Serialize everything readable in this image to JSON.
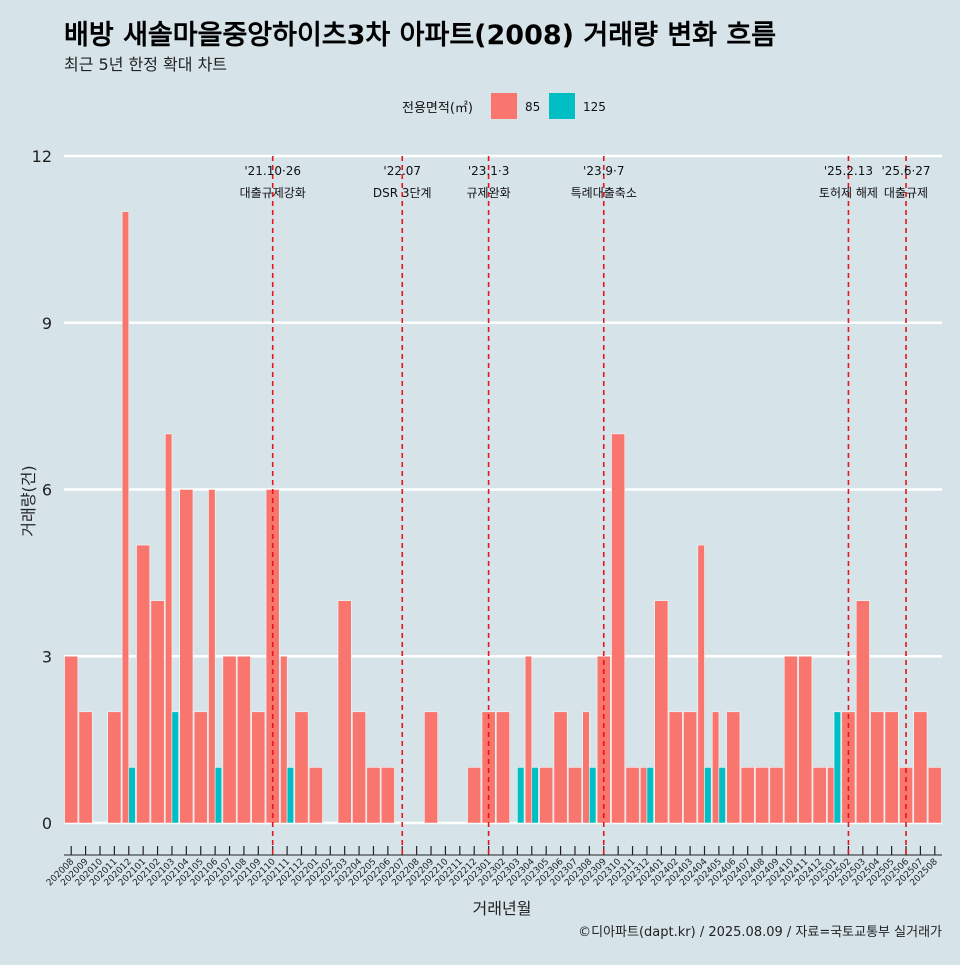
{
  "title": "배방 새솔마을중앙하이츠3차 아파트(2008) 거래량 변화 흐름",
  "subtitle": "최근 5년 한정 확대 차트",
  "caption": "©디아파트(dapt.kr) / 2025.08.09 / 자료=국토교통부 실거래가",
  "colors": {
    "background": "#d6e4ea",
    "s85": "#f8766d",
    "s125": "#00bfc4",
    "event_line": "#e8141b",
    "grid": "#ffffff"
  },
  "chart_data": {
    "type": "bar",
    "xlabel": "거래년월",
    "ylabel": "거래량(건)",
    "ylim": [
      0,
      12
    ],
    "yticks": [
      0,
      3,
      6,
      9,
      12
    ],
    "grid": true,
    "legend": {
      "title": "전용면적(㎡)",
      "position": "top"
    },
    "categories": [
      "202008",
      "202009",
      "202010",
      "202011",
      "202012",
      "202101",
      "202102",
      "202103",
      "202104",
      "202105",
      "202106",
      "202107",
      "202108",
      "202109",
      "202110",
      "202111",
      "202112",
      "202201",
      "202202",
      "202203",
      "202204",
      "202205",
      "202206",
      "202207",
      "202208",
      "202209",
      "202210",
      "202211",
      "202212",
      "202301",
      "202302",
      "202303",
      "202304",
      "202305",
      "202306",
      "202307",
      "202308",
      "202309",
      "202310",
      "202311",
      "202312",
      "202401",
      "202402",
      "202403",
      "202404",
      "202405",
      "202406",
      "202407",
      "202408",
      "202409",
      "202410",
      "202411",
      "202412",
      "202501",
      "202502",
      "202503",
      "202504",
      "202505",
      "202506",
      "202507",
      "202508"
    ],
    "series": [
      {
        "name": "85",
        "values": [
          3,
          2,
          0,
          2,
          11,
          5,
          4,
          7,
          6,
          2,
          6,
          3,
          3,
          2,
          6,
          3,
          2,
          1,
          0,
          4,
          2,
          1,
          1,
          0,
          0,
          2,
          0,
          0,
          1,
          2,
          2,
          0,
          3,
          1,
          2,
          1,
          2,
          3,
          7,
          1,
          1,
          4,
          2,
          2,
          5,
          2,
          2,
          1,
          1,
          1,
          3,
          3,
          1,
          1,
          2,
          4,
          2,
          2,
          1,
          2,
          1
        ]
      },
      {
        "name": "125",
        "values": [
          0,
          0,
          0,
          0,
          1,
          0,
          0,
          2,
          0,
          0,
          1,
          0,
          0,
          0,
          0,
          1,
          0,
          0,
          0,
          0,
          0,
          0,
          0,
          0,
          0,
          0,
          0,
          0,
          0,
          0,
          0,
          1,
          1,
          0,
          0,
          0,
          1,
          0,
          0,
          0,
          1,
          0,
          0,
          0,
          1,
          1,
          0,
          0,
          0,
          0,
          0,
          0,
          0,
          2,
          0,
          0,
          0,
          0,
          0,
          0,
          0
        ]
      }
    ],
    "annotations": [
      {
        "date": "'21.10·26",
        "label": "대출규제강화",
        "category": "202110"
      },
      {
        "date": "'22.07",
        "label": "DSR 3단계",
        "category": "202207"
      },
      {
        "date": "'23.1·3",
        "label": "규제완화",
        "category": "202301"
      },
      {
        "date": "'23.9·7",
        "label": "특례대출축소",
        "category": "202309"
      },
      {
        "date": "'25.2.13",
        "label": "토허제 해제",
        "category": "202502"
      },
      {
        "date": "'25.6·27",
        "label": "대출규제",
        "category": "202506"
      }
    ]
  }
}
